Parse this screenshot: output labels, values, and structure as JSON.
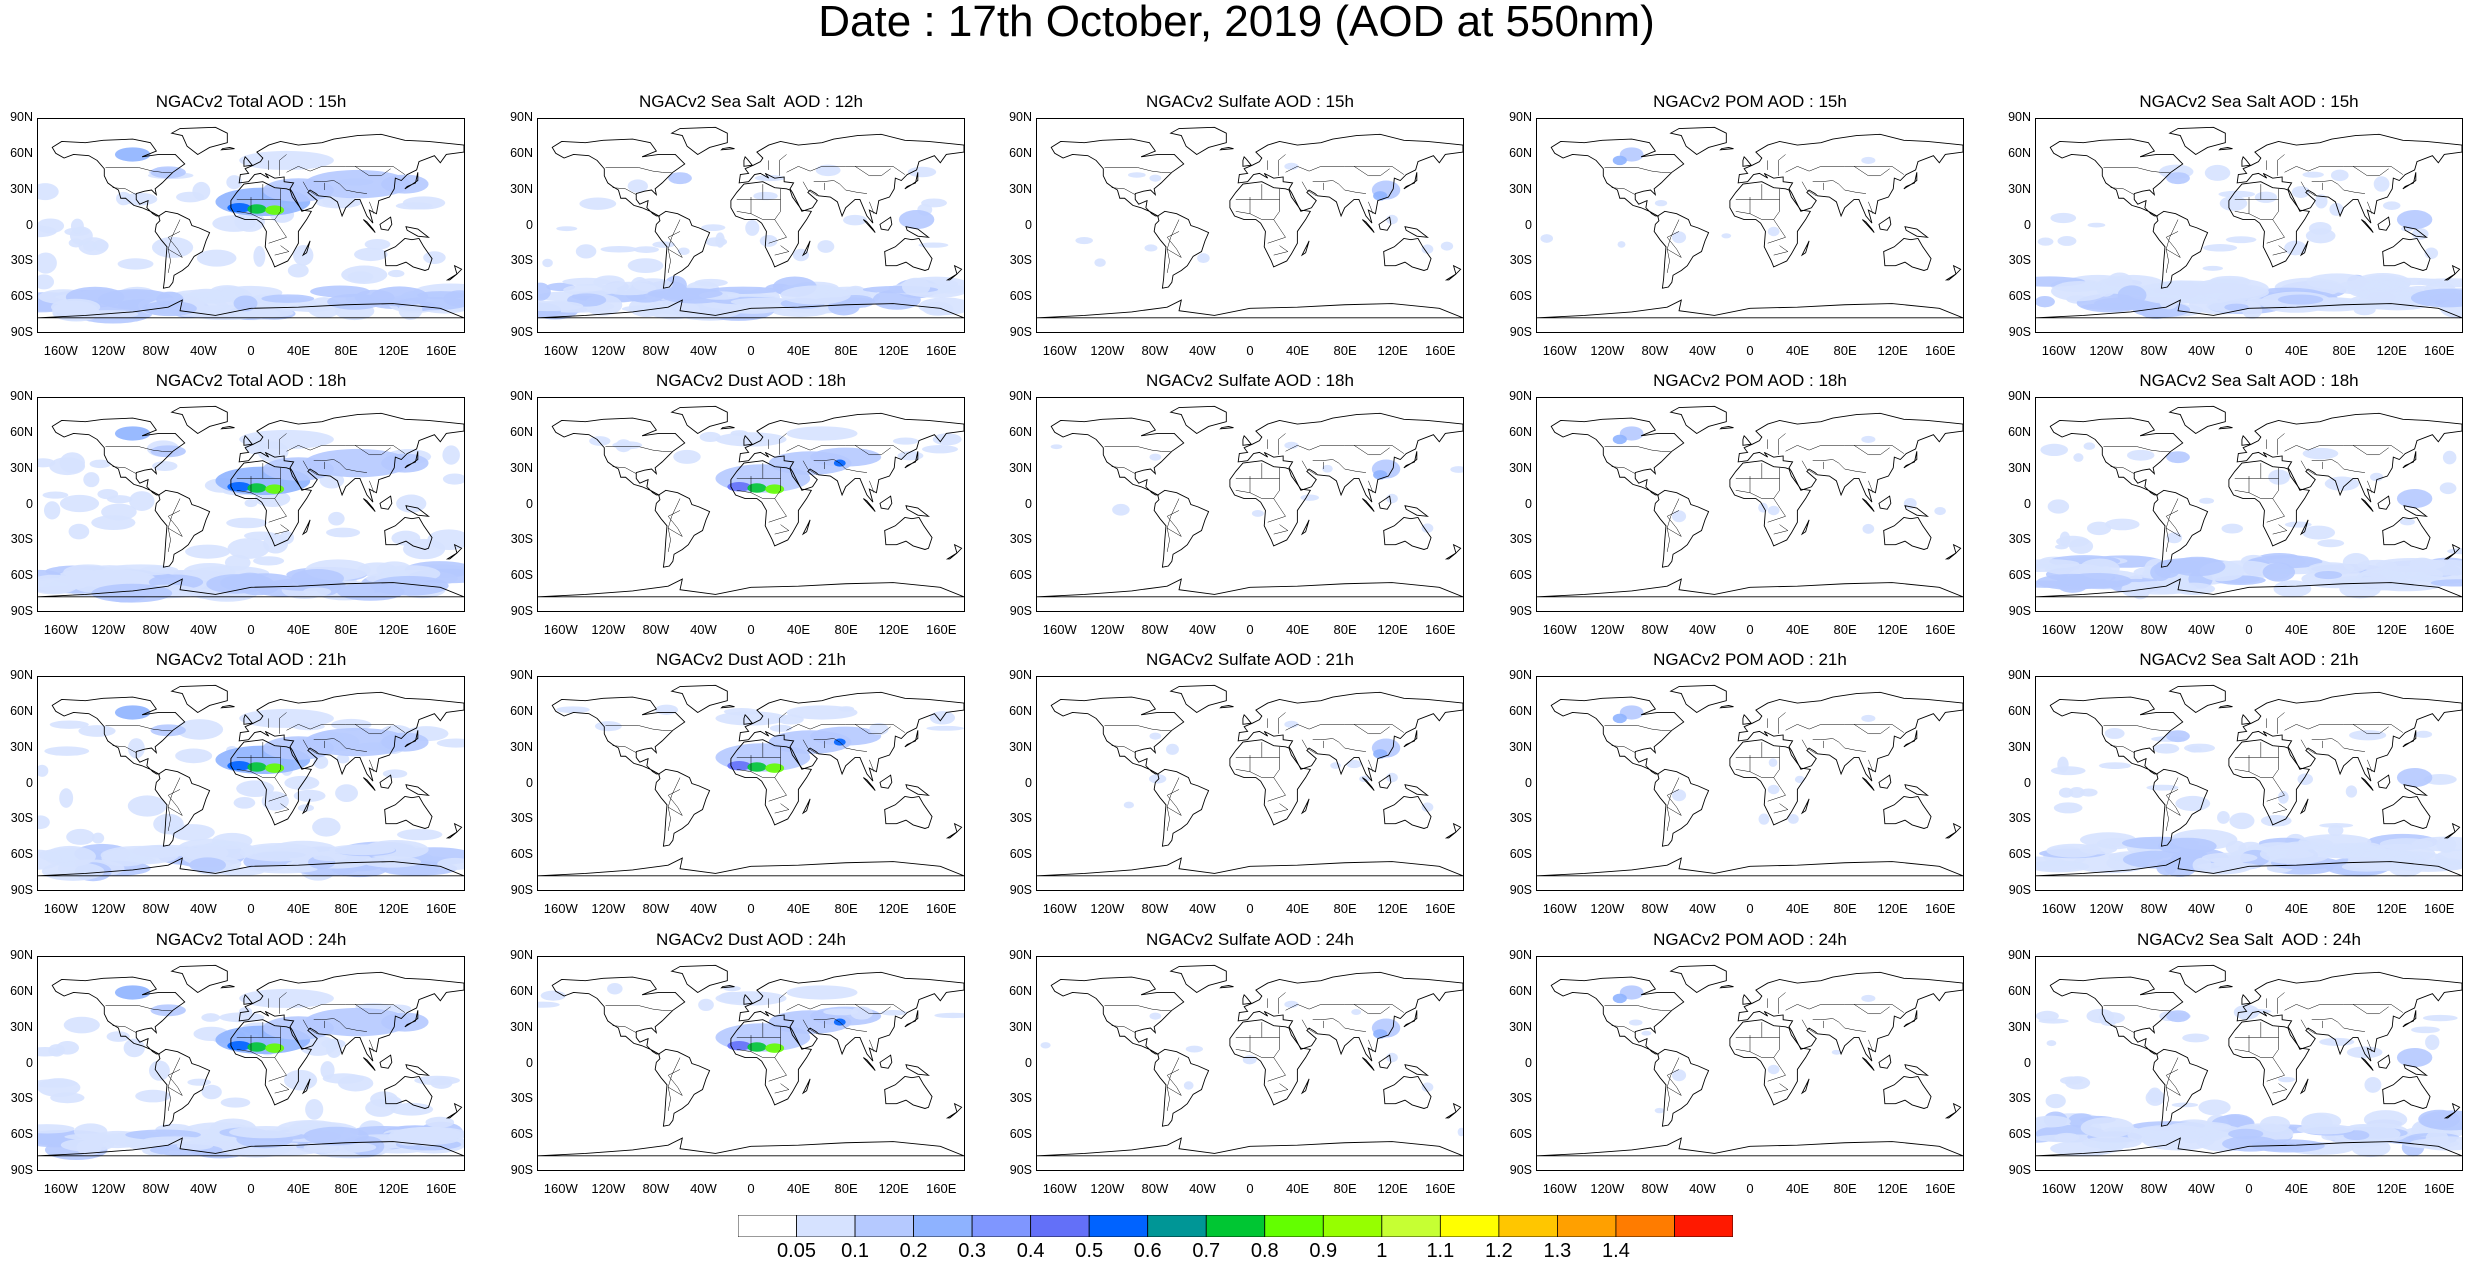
{
  "title": "Date : 17th October, 2019 (AOD at 550nm)",
  "panels": [
    [
      "NGACv2 Total AOD : 15h",
      "NGACv2 Sea Salt  AOD : 12h",
      "NGACv2 Sulfate AOD : 15h",
      "NGACv2 POM AOD : 15h",
      "NGACv2 Sea Salt AOD : 15h"
    ],
    [
      "NGACv2 Total AOD : 18h",
      "NGACv2 Dust AOD : 18h",
      "NGACv2 Sulfate AOD : 18h",
      "NGACv2 POM AOD : 18h",
      "NGACv2 Sea Salt AOD : 18h"
    ],
    [
      "NGACv2 Total AOD : 21h",
      "NGACv2 Dust AOD : 21h",
      "NGACv2 Sulfate AOD : 21h",
      "NGACv2 POM AOD : 21h",
      "NGACv2 Sea Salt AOD : 21h"
    ],
    [
      "NGACv2 Total AOD : 24h",
      "NGACv2 Dust AOD : 24h",
      "NGACv2 Sulfate AOD : 24h",
      "NGACv2 POM AOD : 24h",
      "NGACv2 Sea Salt  AOD : 24h"
    ]
  ],
  "lat_ticks": [
    "90N",
    "60N",
    "30N",
    "0",
    "30S",
    "60S",
    "90S"
  ],
  "lon_ticks": [
    "160W",
    "120W",
    "80W",
    "40W",
    "0",
    "40E",
    "80E",
    "120E",
    "160E"
  ],
  "colorbar": {
    "labels": [
      "0.05",
      "0.1",
      "0.2",
      "0.3",
      "0.4",
      "0.5",
      "0.6",
      "0.7",
      "0.8",
      "0.9",
      "1",
      "1.1",
      "1.2",
      "1.3",
      "1.4"
    ],
    "colors": [
      "#ffffff",
      "#d6e2ff",
      "#b5c9ff",
      "#8eb2ff",
      "#7f96ff",
      "#6370f8",
      "#0063ff",
      "#009696",
      "#00c633",
      "#63ff00",
      "#96ff00",
      "#c6ff33",
      "#ffff00",
      "#ffc600",
      "#ffa000",
      "#ff7c00",
      "#ff1900"
    ]
  }
}
